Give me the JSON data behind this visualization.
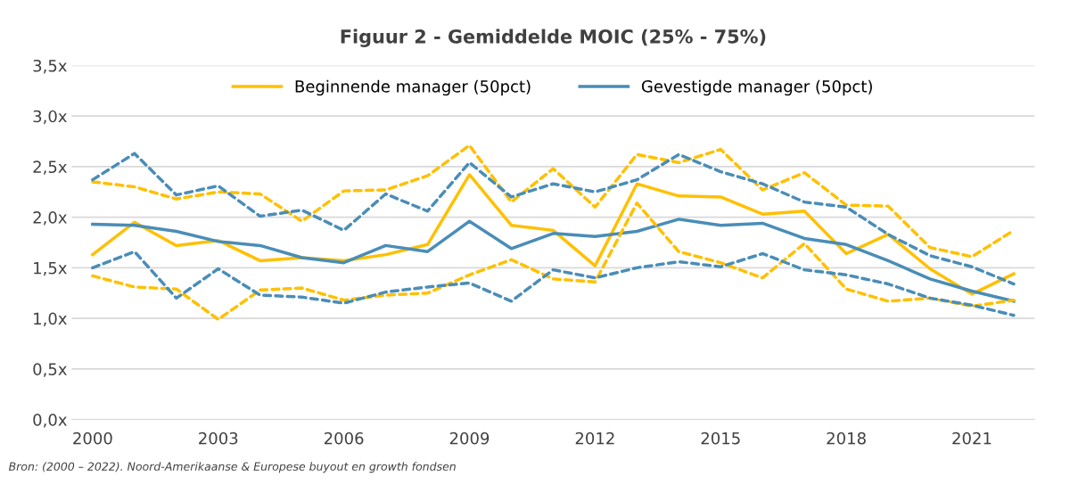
{
  "chart_data": {
    "type": "line",
    "title": "Figuur 2 - Gemiddelde MOIC (25% - 75%)",
    "x": [
      2000,
      2001,
      2002,
      2003,
      2004,
      2005,
      2006,
      2007,
      2008,
      2009,
      2010,
      2011,
      2012,
      2013,
      2014,
      2015,
      2016,
      2017,
      2018,
      2019,
      2020,
      2021,
      2022
    ],
    "series": [
      {
        "name": "Beginnende manager (50pct)",
        "color": "#ffc000",
        "line_style": "solid",
        "values": [
          1.63,
          1.95,
          1.72,
          1.77,
          1.57,
          1.6,
          1.57,
          1.63,
          1.73,
          2.42,
          1.92,
          1.87,
          1.52,
          2.33,
          2.21,
          2.2,
          2.03,
          2.06,
          1.64,
          1.83,
          1.49,
          1.24,
          1.44
        ]
      },
      {
        "name": "Gevestigde manager (50pct)",
        "color": "#4a8db7",
        "line_style": "solid",
        "values": [
          1.93,
          1.92,
          1.86,
          1.76,
          1.72,
          1.6,
          1.55,
          1.72,
          1.66,
          1.96,
          1.69,
          1.84,
          1.81,
          1.86,
          1.98,
          1.92,
          1.94,
          1.79,
          1.73,
          1.57,
          1.39,
          1.27,
          1.17
        ]
      },
      {
        "color": "#ffc000",
        "line_style": "dashed",
        "values": [
          2.35,
          2.3,
          2.18,
          2.25,
          2.23,
          1.96,
          2.26,
          2.27,
          2.41,
          2.71,
          2.15,
          2.48,
          2.1,
          2.62,
          2.54,
          2.67,
          2.27,
          2.44,
          2.12,
          2.11,
          1.7,
          1.61,
          1.87
        ]
      },
      {
        "color": "#ffc000",
        "line_style": "dashed",
        "values": [
          1.42,
          1.31,
          1.29,
          0.99,
          1.28,
          1.3,
          1.18,
          1.23,
          1.25,
          1.43,
          1.58,
          1.39,
          1.36,
          2.14,
          1.66,
          1.55,
          1.4,
          1.74,
          1.29,
          1.17,
          1.2,
          1.12,
          1.18
        ]
      },
      {
        "color": "#4a8db7",
        "line_style": "dashed",
        "values": [
          2.37,
          2.63,
          2.22,
          2.31,
          2.01,
          2.07,
          1.87,
          2.23,
          2.06,
          2.54,
          2.2,
          2.33,
          2.25,
          2.37,
          2.62,
          2.45,
          2.33,
          2.15,
          2.1,
          1.83,
          1.62,
          1.51,
          1.34
        ]
      },
      {
        "color": "#4a8db7",
        "line_style": "dashed",
        "values": [
          1.5,
          1.66,
          1.2,
          1.49,
          1.23,
          1.21,
          1.15,
          1.26,
          1.31,
          1.35,
          1.17,
          1.48,
          1.4,
          1.5,
          1.56,
          1.51,
          1.64,
          1.48,
          1.43,
          1.34,
          1.2,
          1.13,
          1.03
        ]
      }
    ],
    "xlim": [
      1999.5,
      2022.5
    ],
    "xticks": [
      2000,
      2003,
      2006,
      2009,
      2012,
      2015,
      2018,
      2021
    ],
    "ylim": [
      0,
      3.5
    ],
    "yticks": [
      {
        "value": 0,
        "label": "0,0x"
      },
      {
        "value": 0.5,
        "label": "0,5x"
      },
      {
        "value": 1,
        "label": "1,0x"
      },
      {
        "value": 1.5,
        "label": "1,5x"
      },
      {
        "value": 2,
        "label": "2,0x"
      },
      {
        "value": 2.5,
        "label": "2,5x"
      },
      {
        "value": 3,
        "label": "3,0x"
      },
      {
        "value": 3.5,
        "label": "3,5x"
      }
    ],
    "grid": "y",
    "legend": "top",
    "marker": "none",
    "annotations": [
      "Bron: (2000 – 2022). Noord-Amerikaanse & Europese buyout en growth fondsen"
    ]
  }
}
